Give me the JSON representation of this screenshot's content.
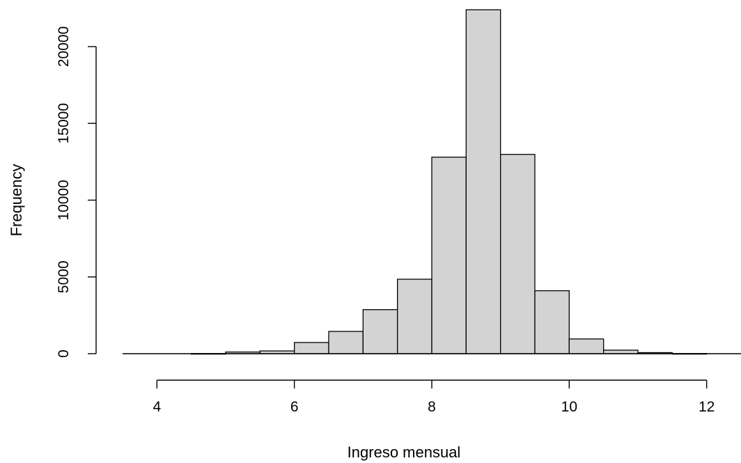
{
  "chart_data": {
    "type": "bar",
    "title": "",
    "xlabel": "Ingreso mensual",
    "ylabel": "Frequency",
    "bins": [
      {
        "start": 4.0,
        "end": 4.5,
        "count": 0
      },
      {
        "start": 4.5,
        "end": 5.0,
        "count": 10
      },
      {
        "start": 5.0,
        "end": 5.5,
        "count": 110
      },
      {
        "start": 5.5,
        "end": 6.0,
        "count": 180
      },
      {
        "start": 6.0,
        "end": 6.5,
        "count": 730
      },
      {
        "start": 6.5,
        "end": 7.0,
        "count": 1450
      },
      {
        "start": 7.0,
        "end": 7.5,
        "count": 2870
      },
      {
        "start": 7.5,
        "end": 8.0,
        "count": 4850
      },
      {
        "start": 8.0,
        "end": 8.5,
        "count": 12800
      },
      {
        "start": 8.5,
        "end": 9.0,
        "count": 22400
      },
      {
        "start": 9.0,
        "end": 9.5,
        "count": 12980
      },
      {
        "start": 9.5,
        "end": 10.0,
        "count": 4100
      },
      {
        "start": 10.0,
        "end": 10.5,
        "count": 960
      },
      {
        "start": 10.5,
        "end": 11.0,
        "count": 230
      },
      {
        "start": 11.0,
        "end": 11.5,
        "count": 70
      },
      {
        "start": 11.5,
        "end": 12.0,
        "count": 10
      },
      {
        "start": 12.0,
        "end": 12.5,
        "count": 0
      }
    ],
    "x_ticks": [
      4,
      6,
      8,
      10,
      12
    ],
    "y_ticks": [
      0,
      5000,
      10000,
      15000,
      20000
    ],
    "xlim": [
      3.5,
      12.5
    ],
    "ylim": [
      0,
      22400
    ],
    "grid": false,
    "bar_color": "#d3d3d3",
    "edge_color": "#000000"
  }
}
